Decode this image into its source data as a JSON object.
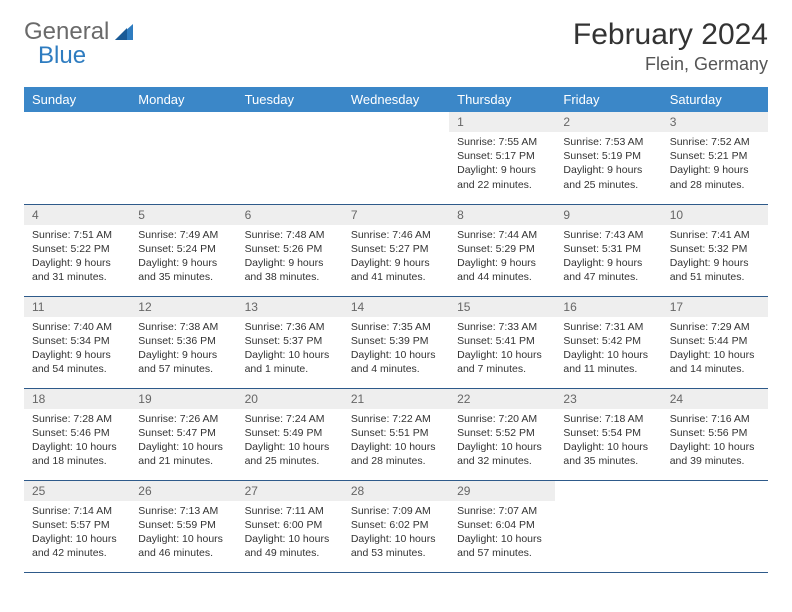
{
  "brand": {
    "word1": "General",
    "word2": "Blue"
  },
  "title": "February 2024",
  "location": "Flein, Germany",
  "colors": {
    "header_bg": "#3b87c8",
    "header_text": "#ffffff",
    "daynum_bg": "#eeeeee",
    "daynum_text": "#666666",
    "border": "#2e5a8a",
    "brand_gray": "#6a6a6a",
    "brand_blue": "#2e7cc0"
  },
  "weekdays": [
    "Sunday",
    "Monday",
    "Tuesday",
    "Wednesday",
    "Thursday",
    "Friday",
    "Saturday"
  ],
  "weeks": [
    [
      null,
      null,
      null,
      null,
      {
        "n": "1",
        "sr": "7:55 AM",
        "ss": "5:17 PM",
        "dl": "9 hours and 22 minutes."
      },
      {
        "n": "2",
        "sr": "7:53 AM",
        "ss": "5:19 PM",
        "dl": "9 hours and 25 minutes."
      },
      {
        "n": "3",
        "sr": "7:52 AM",
        "ss": "5:21 PM",
        "dl": "9 hours and 28 minutes."
      }
    ],
    [
      {
        "n": "4",
        "sr": "7:51 AM",
        "ss": "5:22 PM",
        "dl": "9 hours and 31 minutes."
      },
      {
        "n": "5",
        "sr": "7:49 AM",
        "ss": "5:24 PM",
        "dl": "9 hours and 35 minutes."
      },
      {
        "n": "6",
        "sr": "7:48 AM",
        "ss": "5:26 PM",
        "dl": "9 hours and 38 minutes."
      },
      {
        "n": "7",
        "sr": "7:46 AM",
        "ss": "5:27 PM",
        "dl": "9 hours and 41 minutes."
      },
      {
        "n": "8",
        "sr": "7:44 AM",
        "ss": "5:29 PM",
        "dl": "9 hours and 44 minutes."
      },
      {
        "n": "9",
        "sr": "7:43 AM",
        "ss": "5:31 PM",
        "dl": "9 hours and 47 minutes."
      },
      {
        "n": "10",
        "sr": "7:41 AM",
        "ss": "5:32 PM",
        "dl": "9 hours and 51 minutes."
      }
    ],
    [
      {
        "n": "11",
        "sr": "7:40 AM",
        "ss": "5:34 PM",
        "dl": "9 hours and 54 minutes."
      },
      {
        "n": "12",
        "sr": "7:38 AM",
        "ss": "5:36 PM",
        "dl": "9 hours and 57 minutes."
      },
      {
        "n": "13",
        "sr": "7:36 AM",
        "ss": "5:37 PM",
        "dl": "10 hours and 1 minute."
      },
      {
        "n": "14",
        "sr": "7:35 AM",
        "ss": "5:39 PM",
        "dl": "10 hours and 4 minutes."
      },
      {
        "n": "15",
        "sr": "7:33 AM",
        "ss": "5:41 PM",
        "dl": "10 hours and 7 minutes."
      },
      {
        "n": "16",
        "sr": "7:31 AM",
        "ss": "5:42 PM",
        "dl": "10 hours and 11 minutes."
      },
      {
        "n": "17",
        "sr": "7:29 AM",
        "ss": "5:44 PM",
        "dl": "10 hours and 14 minutes."
      }
    ],
    [
      {
        "n": "18",
        "sr": "7:28 AM",
        "ss": "5:46 PM",
        "dl": "10 hours and 18 minutes."
      },
      {
        "n": "19",
        "sr": "7:26 AM",
        "ss": "5:47 PM",
        "dl": "10 hours and 21 minutes."
      },
      {
        "n": "20",
        "sr": "7:24 AM",
        "ss": "5:49 PM",
        "dl": "10 hours and 25 minutes."
      },
      {
        "n": "21",
        "sr": "7:22 AM",
        "ss": "5:51 PM",
        "dl": "10 hours and 28 minutes."
      },
      {
        "n": "22",
        "sr": "7:20 AM",
        "ss": "5:52 PM",
        "dl": "10 hours and 32 minutes."
      },
      {
        "n": "23",
        "sr": "7:18 AM",
        "ss": "5:54 PM",
        "dl": "10 hours and 35 minutes."
      },
      {
        "n": "24",
        "sr": "7:16 AM",
        "ss": "5:56 PM",
        "dl": "10 hours and 39 minutes."
      }
    ],
    [
      {
        "n": "25",
        "sr": "7:14 AM",
        "ss": "5:57 PM",
        "dl": "10 hours and 42 minutes."
      },
      {
        "n": "26",
        "sr": "7:13 AM",
        "ss": "5:59 PM",
        "dl": "10 hours and 46 minutes."
      },
      {
        "n": "27",
        "sr": "7:11 AM",
        "ss": "6:00 PM",
        "dl": "10 hours and 49 minutes."
      },
      {
        "n": "28",
        "sr": "7:09 AM",
        "ss": "6:02 PM",
        "dl": "10 hours and 53 minutes."
      },
      {
        "n": "29",
        "sr": "7:07 AM",
        "ss": "6:04 PM",
        "dl": "10 hours and 57 minutes."
      },
      null,
      null
    ]
  ],
  "labels": {
    "sunrise": "Sunrise: ",
    "sunset": "Sunset: ",
    "daylight": "Daylight: "
  }
}
